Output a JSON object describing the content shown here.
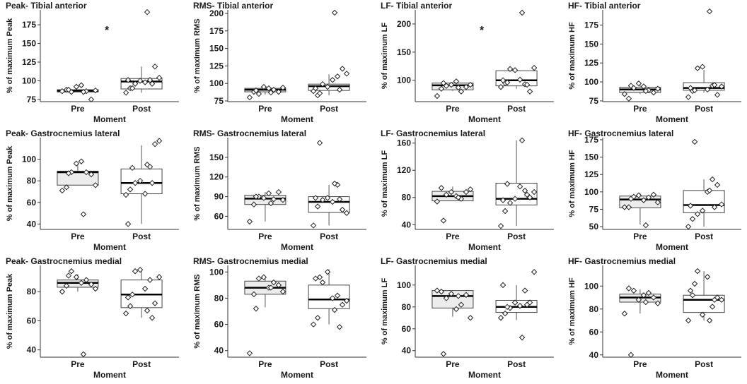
{
  "chart_data": [
    {
      "type": "box",
      "title": "Peak- Tibial anterior",
      "xlabel": "Moment",
      "ylabel": "% of maximum Peak",
      "ylim": [
        72,
        195
      ],
      "yticks": [
        75,
        100,
        125,
        150,
        175
      ],
      "categories": [
        "Pre",
        "Post"
      ],
      "boxes": [
        {
          "q1": 85,
          "median": 86.5,
          "q3": 88,
          "whisker_low": 85,
          "whisker_high": 88
        },
        {
          "q1": 89,
          "median": 99,
          "q3": 103,
          "whisker_low": 84,
          "whisker_high": 119
        }
      ],
      "points": [
        [
          86,
          88,
          85,
          92,
          94,
          86,
          75,
          87,
          88,
          85
        ],
        [
          84,
          90,
          96,
          100,
          98,
          101,
          119,
          104,
          90,
          192,
          101,
          96
        ]
      ],
      "annotation": "*"
    },
    {
      "type": "box",
      "title": "RMS- Tibial anterior",
      "xlabel": "Moment",
      "ylabel": "% of maximum RMS",
      "ylim": [
        74,
        205
      ],
      "yticks": [
        75,
        100,
        125,
        150,
        175,
        200
      ],
      "categories": [
        "Pre",
        "Post"
      ],
      "boxes": [
        {
          "q1": 88,
          "median": 91,
          "q3": 93,
          "whisker_low": 84,
          "whisker_high": 95
        },
        {
          "q1": 90,
          "median": 96,
          "q3": 99,
          "whisker_low": 83,
          "whisker_high": 113
        }
      ],
      "points": [
        [
          80,
          88,
          85,
          95,
          93,
          91,
          88,
          94,
          90,
          87
        ],
        [
          89,
          83,
          99,
          95,
          105,
          110,
          121,
          114,
          86,
          201,
          93,
          91
        ]
      ]
    },
    {
      "type": "box",
      "title": "LF- Tibial anterior",
      "xlabel": "Moment",
      "ylabel": "% of maximum LF",
      "ylim": [
        62,
        225
      ],
      "yticks": [
        100,
        150,
        200
      ],
      "categories": [
        "Pre",
        "Post"
      ],
      "boxes": [
        {
          "q1": 83,
          "median": 91,
          "q3": 95,
          "whisker_low": 81,
          "whisker_high": 97
        },
        {
          "q1": 90,
          "median": 100,
          "q3": 117,
          "whisker_low": 85,
          "whisker_high": 120
        }
      ],
      "points": [
        [
          72,
          85,
          90,
          92,
          98,
          80,
          88,
          92,
          95,
          87
        ],
        [
          88,
          95,
          120,
          118,
          101,
          93,
          80,
          122,
          96,
          220,
          100,
          92
        ]
      ],
      "annotation": "*"
    },
    {
      "type": "box",
      "title": "HF- Tibial anterior",
      "xlabel": "Moment",
      "ylabel": "% of maximum HF",
      "ylim": [
        74,
        195
      ],
      "yticks": [
        75,
        100,
        125,
        150,
        175
      ],
      "categories": [
        "Pre",
        "Post"
      ],
      "boxes": [
        {
          "q1": 86,
          "median": 90,
          "q3": 93,
          "whisker_low": 84,
          "whisker_high": 97
        },
        {
          "q1": 89,
          "median": 92,
          "q3": 99,
          "whisker_low": 86,
          "whisker_high": 116
        }
      ],
      "points": [
        [
          84,
          78,
          92,
          98,
          94,
          89,
          86,
          91,
          95,
          88
        ],
        [
          80,
          88,
          118,
          120,
          90,
          95,
          83,
          94,
          89,
          193,
          92,
          96
        ]
      ]
    },
    {
      "type": "box",
      "title": "Peak- Gastrocnemius lateral",
      "xlabel": "Moment",
      "ylabel": "% of maximum Peak",
      "ylim": [
        35,
        120
      ],
      "yticks": [
        40,
        60,
        80,
        100
      ],
      "categories": [
        "Pre",
        "Post"
      ],
      "boxes": [
        {
          "q1": 76,
          "median": 88,
          "q3": 89,
          "whisker_low": 76,
          "whisker_high": 97
        },
        {
          "q1": 68,
          "median": 78,
          "q3": 91,
          "whisker_low": 40,
          "whisker_high": 113
        }
      ],
      "points": [
        [
          71,
          74,
          88,
          96,
          98,
          88,
          86,
          76,
          87,
          49
        ],
        [
          67,
          72,
          78,
          80,
          68,
          93,
          114,
          117,
          92,
          95,
          40,
          78
        ]
      ]
    },
    {
      "type": "box",
      "title": "RMS- Gastrocnemius lateral",
      "xlabel": "Moment",
      "ylabel": "% of maximum RMS",
      "ylim": [
        40,
        180
      ],
      "yticks": [
        60,
        90,
        120,
        150
      ],
      "categories": [
        "Pre",
        "Post"
      ],
      "boxes": [
        {
          "q1": 78,
          "median": 87,
          "q3": 92,
          "whisker_low": 52,
          "whisker_high": 97
        },
        {
          "q1": 66,
          "median": 82,
          "q3": 90,
          "whisker_low": 46,
          "whisker_high": 108
        }
      ],
      "points": [
        [
          52,
          78,
          90,
          88,
          95,
          86,
          97,
          85,
          90,
          80
        ],
        [
          46,
          75,
          85,
          88,
          82,
          108,
          70,
          65,
          172,
          110,
          88,
          86
        ]
      ]
    },
    {
      "type": "box",
      "title": "LF- Gastrocnemius lateral",
      "xlabel": "Moment",
      "ylabel": "% of maximum LF",
      "ylim": [
        33,
        168
      ],
      "yticks": [
        40,
        80,
        120,
        160
      ],
      "categories": [
        "Pre",
        "Post"
      ],
      "boxes": [
        {
          "q1": 75,
          "median": 82,
          "q3": 89,
          "whisker_low": 75,
          "whisker_high": 96
        },
        {
          "q1": 69,
          "median": 78,
          "q3": 101,
          "whisker_low": 38,
          "whisker_high": 164
        }
      ],
      "points": [
        [
          74,
          94,
          84,
          88,
          82,
          78,
          88,
          92,
          46,
          80
        ],
        [
          38,
          60,
          72,
          78,
          96,
          90,
          80,
          88,
          100,
          164,
          76,
          84
        ]
      ]
    },
    {
      "type": "box",
      "title": "HF- Gastrocnemius lateral",
      "xlabel": "Moment",
      "ylabel": "% of maximum HF",
      "ylim": [
        46,
        178
      ],
      "yticks": [
        50,
        75,
        100,
        125,
        150,
        175
      ],
      "categories": [
        "Pre",
        "Post"
      ],
      "boxes": [
        {
          "q1": 77,
          "median": 89,
          "q3": 94,
          "whisker_low": 53,
          "whisker_high": 98
        },
        {
          "q1": 70,
          "median": 81,
          "q3": 102,
          "whisker_low": 50,
          "whisker_high": 118
        }
      ],
      "points": [
        [
          78,
          78,
          93,
          95,
          88,
          92,
          96,
          85,
          90,
          52
        ],
        [
          50,
          61,
          68,
          73,
          100,
          118,
          110,
          82,
          172,
          102,
          80,
          78
        ]
      ]
    },
    {
      "type": "box",
      "title": "Peak- Gastrocnemius medial",
      "xlabel": "Moment",
      "ylabel": "% of maximum Peak",
      "ylim": [
        35,
        98
      ],
      "yticks": [
        40,
        60,
        80
      ],
      "categories": [
        "Pre",
        "Post"
      ],
      "boxes": [
        {
          "q1": 83,
          "median": 86,
          "q3": 88,
          "whisker_low": 80,
          "whisker_high": 92
        },
        {
          "q1": 69,
          "median": 78,
          "q3": 88,
          "whisker_low": 62,
          "whisker_high": 95
        }
      ],
      "points": [
        [
          80,
          84,
          94,
          90,
          86,
          88,
          85,
          82,
          91,
          37
        ],
        [
          65,
          70,
          94,
          95,
          82,
          88,
          72,
          90,
          78,
          67,
          76,
          62
        ]
      ]
    },
    {
      "type": "box",
      "title": "RMS- Gastrocnemius medial",
      "xlabel": "Moment",
      "ylabel": "% of maximum RMS",
      "ylim": [
        35,
        105
      ],
      "yticks": [
        40,
        60,
        80,
        100
      ],
      "categories": [
        "Pre",
        "Post"
      ],
      "boxes": [
        {
          "q1": 83,
          "median": 88,
          "q3": 93,
          "whisker_low": 73,
          "whisker_high": 97
        },
        {
          "q1": 72,
          "median": 79,
          "q3": 90,
          "whisker_low": 60,
          "whisker_high": 102
        }
      ],
      "points": [
        [
          38,
          83,
          95,
          96,
          88,
          92,
          90,
          85,
          72,
          88
        ],
        [
          60,
          65,
          92,
          100,
          80,
          82,
          75,
          78,
          96,
          71,
          95,
          58
        ]
      ]
    },
    {
      "type": "box",
      "title": "LF- Gastrocnemius medial",
      "xlabel": "Moment",
      "ylabel": "% of maximum LF",
      "ylim": [
        34,
        118
      ],
      "yticks": [
        40,
        60,
        80,
        100
      ],
      "categories": [
        "Pre",
        "Post"
      ],
      "boxes": [
        {
          "q1": 79,
          "median": 90,
          "q3": 95,
          "whisker_low": 71,
          "whisker_high": 95
        },
        {
          "q1": 75,
          "median": 80,
          "q3": 86,
          "whisker_low": 68,
          "whisker_high": 100
        }
      ],
      "points": [
        [
          95,
          94,
          88,
          92,
          78,
          82,
          91,
          70,
          37,
          90
        ],
        [
          70,
          74,
          79,
          84,
          81,
          95,
          84,
          112,
          80,
          52,
          100,
          82
        ]
      ]
    },
    {
      "type": "box",
      "title": "HF- Gastrocnemius medial",
      "xlabel": "Moment",
      "ylabel": "% of maximum HF",
      "ylim": [
        38,
        118
      ],
      "yticks": [
        40,
        60,
        80,
        100
      ],
      "categories": [
        "Pre",
        "Post"
      ],
      "boxes": [
        {
          "q1": 86,
          "median": 90,
          "q3": 93,
          "whisker_low": 76,
          "whisker_high": 97
        },
        {
          "q1": 77,
          "median": 88,
          "q3": 92,
          "whisker_low": 70,
          "whisker_high": 113
        }
      ],
      "points": [
        [
          76,
          98,
          96,
          88,
          92,
          94,
          90,
          85,
          40,
          86
        ],
        [
          70,
          92,
          113,
          75,
          108,
          82,
          90,
          88,
          102,
          70,
          96,
          88
        ]
      ]
    }
  ]
}
